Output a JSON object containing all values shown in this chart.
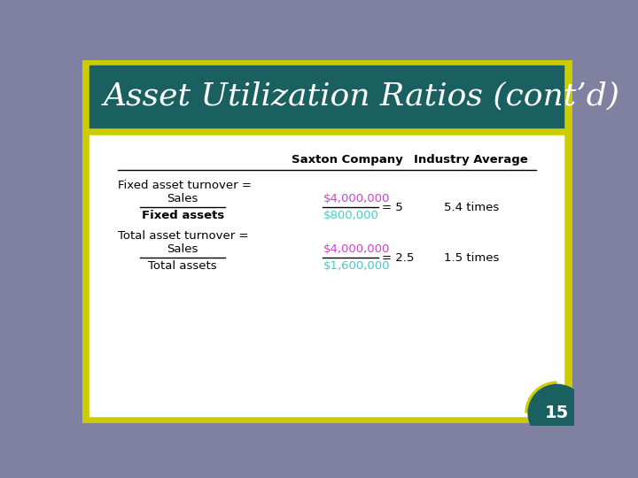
{
  "title": "Asset Utilization Ratios (cont’d)",
  "title_bg_color": "#1a6060",
  "title_text_color": "#ffffff",
  "slide_bg_color": "#8080a0",
  "content_bg_color": "#ffffff",
  "content_border_color": "#cccc00",
  "header_line_color": "#000000",
  "col_saxton": "Saxton Company",
  "col_industry": "Industry Average",
  "row1_label1": "Fixed asset turnover =",
  "row1_numerator": "Sales",
  "row1_denominator": "Fixed assets",
  "row1_saxton_num": "$4,000,000",
  "row1_saxton_den": "$800,000",
  "row1_saxton_result": "= 5",
  "row1_industry": "5.4 times",
  "row2_label1": "Total asset turnover =",
  "row2_numerator": "Sales",
  "row2_denominator": "Total assets",
  "row2_saxton_num": "$4,000,000",
  "row2_saxton_den": "$1,600,000",
  "row2_saxton_result": "= 2.5",
  "row2_industry": "1.5 times",
  "saxton_num_color": "#cc44cc",
  "saxton_den_color": "#44cccc",
  "label_color": "#000000",
  "header_color": "#000000",
  "industry_color": "#000000",
  "page_number": "15",
  "page_num_color": "#ffffff",
  "page_num_bg": "#1a6060",
  "title_fontsize": 26,
  "body_fontsize": 9.5,
  "header_fontsize": 9.5
}
